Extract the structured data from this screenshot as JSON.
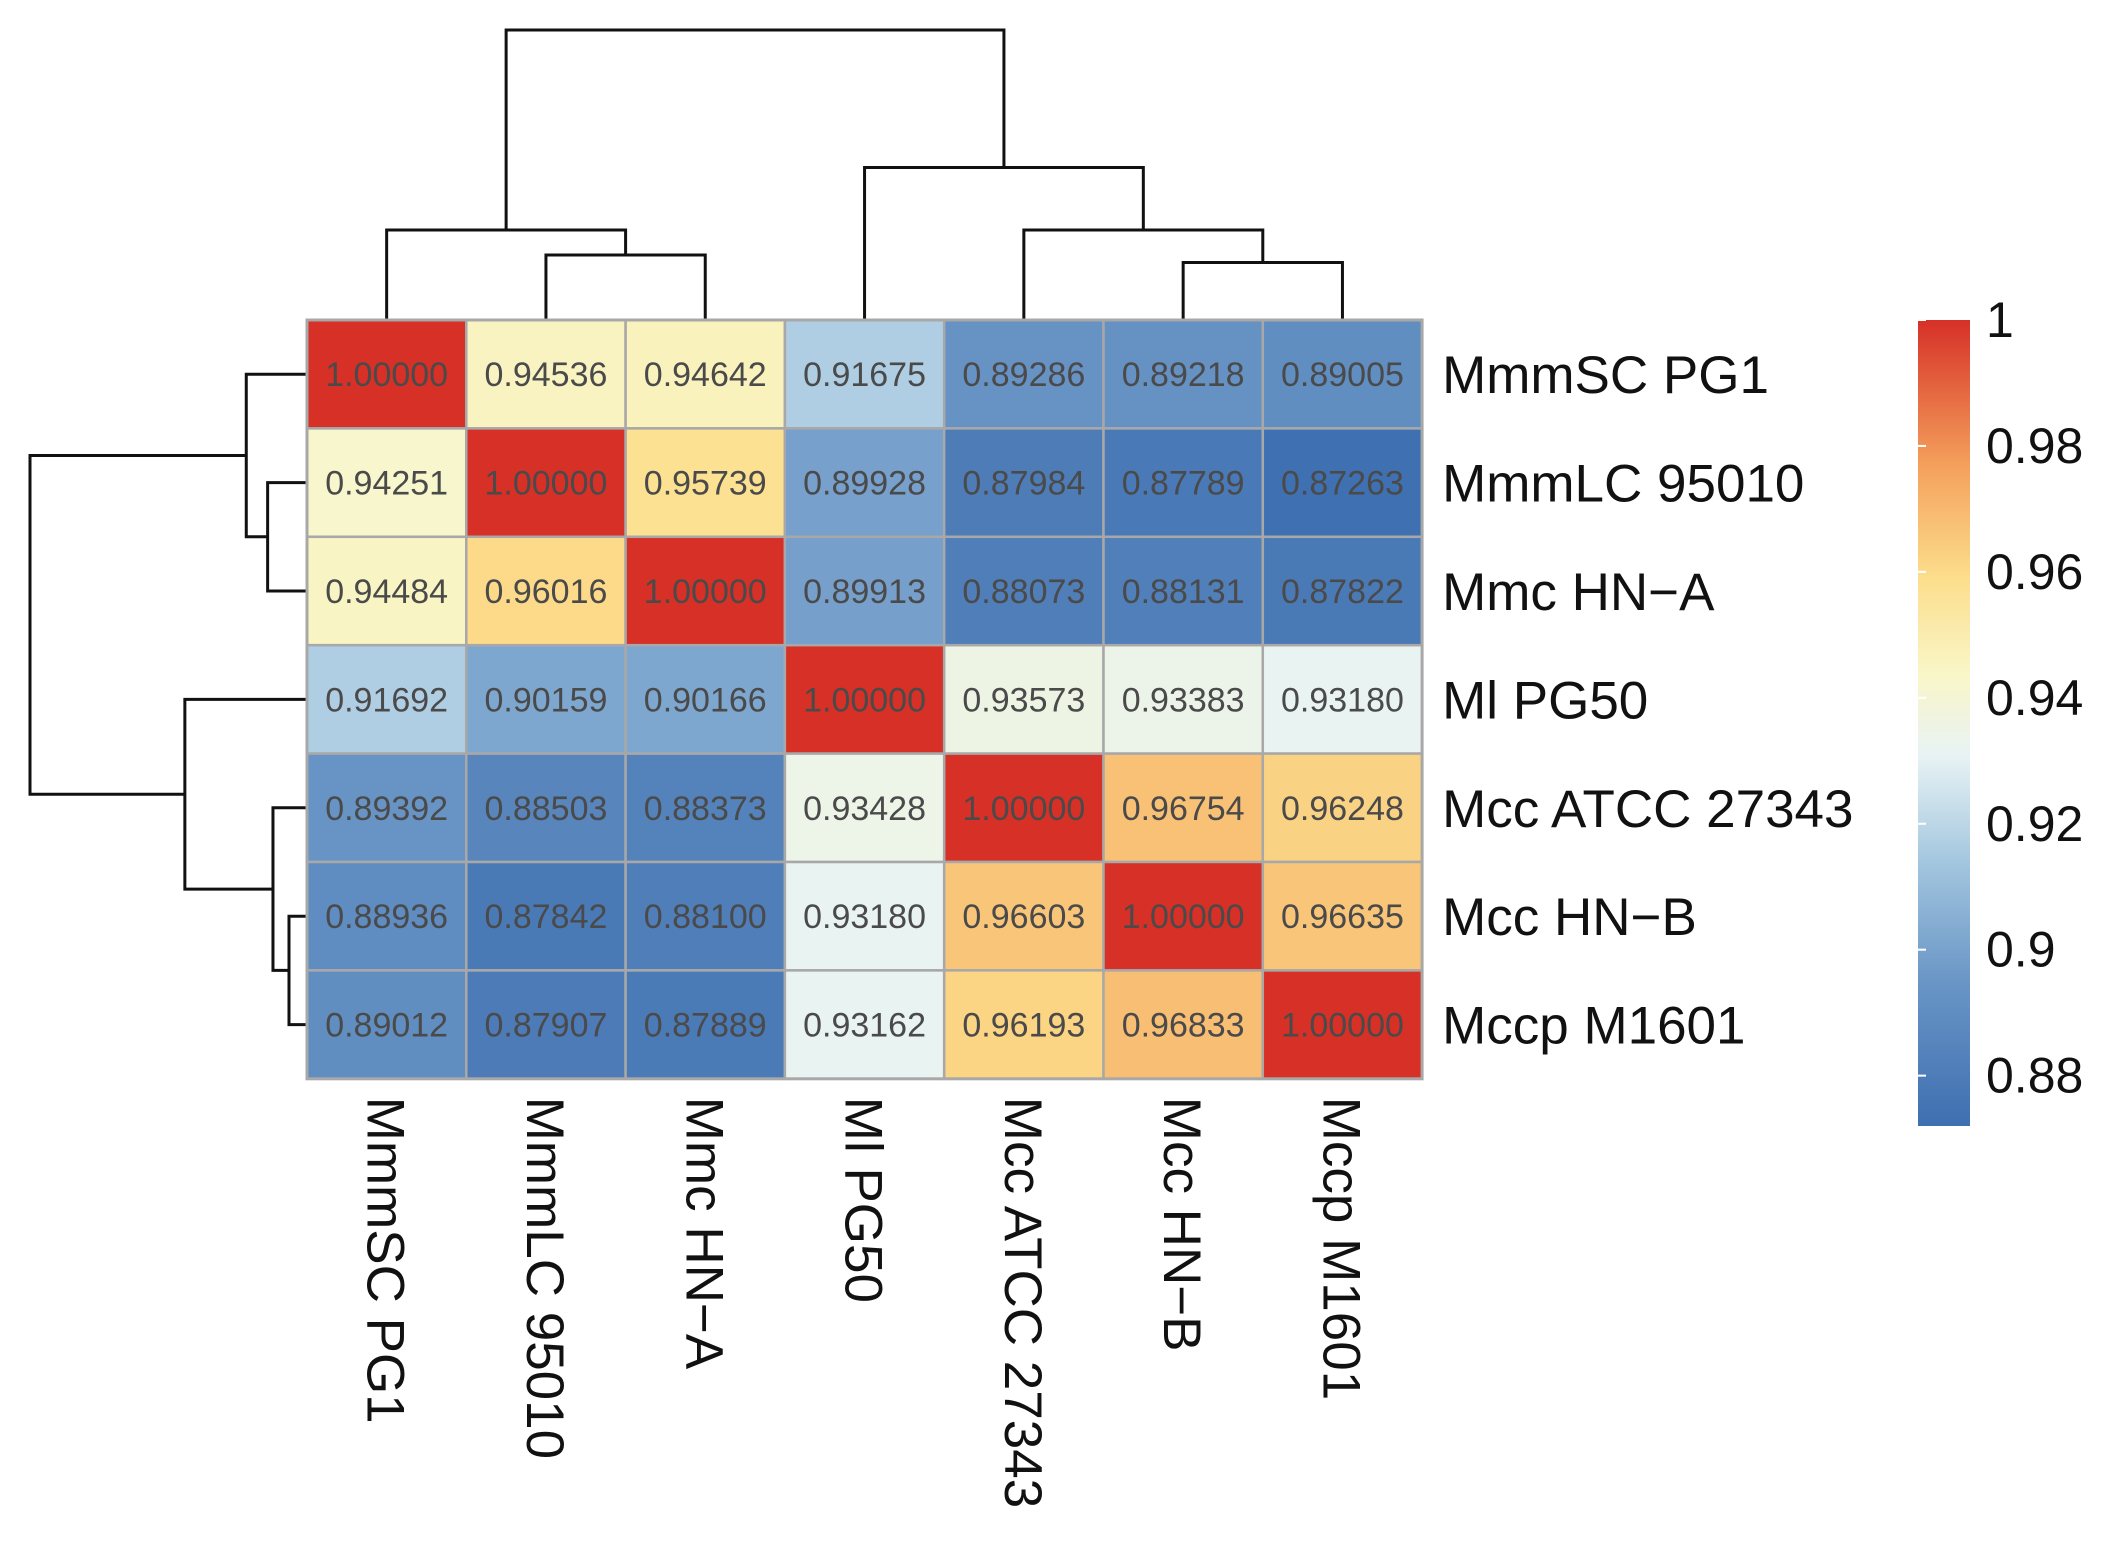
{
  "chart_data": {
    "type": "heatmap",
    "title": "",
    "row_labels": [
      "MmmSC  PG1",
      "MmmLC  95010",
      "Mmc  HN−A",
      "Ml  PG50",
      "Mcc  ATCC  27343",
      "Mcc  HN−B",
      "Mccp  M1601"
    ],
    "col_labels": [
      "MmmSC  PG1",
      "MmmLC  95010",
      "Mmc  HN−A",
      "Ml  PG50",
      "Mcc  ATCC  27343",
      "Mcc  HN−B",
      "Mccp  M1601"
    ],
    "values": [
      [
        "1.00000",
        "0.94536",
        "0.94642",
        "0.91675",
        "0.89286",
        "0.89218",
        "0.89005"
      ],
      [
        "0.94251",
        "1.00000",
        "0.95739",
        "0.89928",
        "0.87984",
        "0.87789",
        "0.87263"
      ],
      [
        "0.94484",
        "0.96016",
        "1.00000",
        "0.89913",
        "0.88073",
        "0.88131",
        "0.87822"
      ],
      [
        "0.91692",
        "0.90159",
        "0.90166",
        "1.00000",
        "0.93573",
        "0.93383",
        "0.93180"
      ],
      [
        "0.89392",
        "0.88503",
        "0.88373",
        "0.93428",
        "1.00000",
        "0.96754",
        "0.96248"
      ],
      [
        "0.88936",
        "0.87842",
        "0.88100",
        "0.93180",
        "0.96603",
        "1.00000",
        "0.96635"
      ],
      [
        "0.89012",
        "0.87907",
        "0.87889",
        "0.93162",
        "0.96193",
        "0.96833",
        "1.00000"
      ]
    ],
    "color_range": [
      0.872,
      1.0
    ],
    "colorbar": {
      "ticks": [
        1,
        0.98,
        0.96,
        0.94,
        0.92,
        0.9,
        0.88
      ],
      "tick_labels": [
        "1",
        "0.98",
        "0.96",
        "0.94",
        "0.92",
        "0.9",
        "0.88"
      ]
    },
    "col_dendrogram": {
      "merges": [
        {
          "left": 1,
          "right": 2,
          "height": 0.9
        },
        {
          "left": 5,
          "right": 6,
          "height": 0.93
        },
        {
          "left": 4,
          "right": "merge1",
          "height": 0.8
        },
        {
          "left": 0,
          "right": "merge0",
          "height": 0.8
        },
        {
          "left": 3,
          "right": "merge2",
          "height": 0.55
        },
        {
          "left": "merge3",
          "right": "merge4",
          "height": 0.0
        }
      ]
    },
    "row_dendrogram": {
      "merges": [
        {
          "left": 1,
          "right": 2,
          "height": 0.89
        },
        {
          "left": 5,
          "right": 6,
          "height": 0.97
        },
        {
          "left": 4,
          "right": "merge1",
          "height": 0.91
        },
        {
          "left": 0,
          "right": "merge0",
          "height": 0.81
        },
        {
          "left": 3,
          "right": "merge2",
          "height": 0.58
        },
        {
          "left": "merge3",
          "right": "merge4",
          "height": 0.0
        }
      ]
    },
    "colors": {
      "high": "#d73027",
      "upper_mid": "#f4a05c",
      "mid_warm": "#fde7a0",
      "mid": "#f5f5dc",
      "mid_cool": "#d8ebf0",
      "low_mid": "#8fb6d6",
      "low": "#3e6fb0"
    }
  }
}
